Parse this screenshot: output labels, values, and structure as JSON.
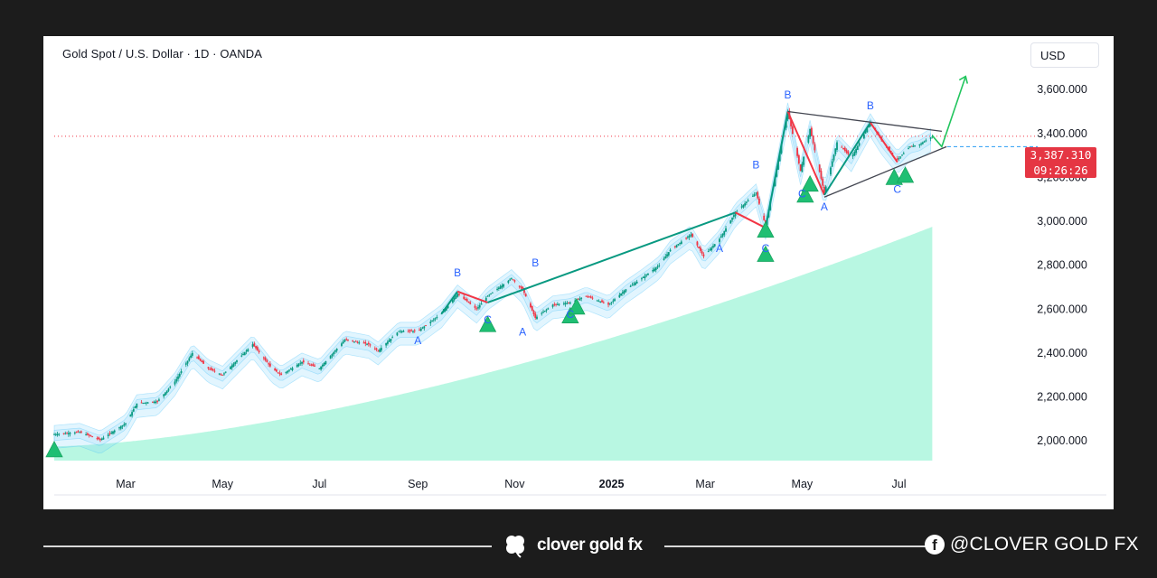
{
  "symbol_title": "Gold Spot / U.S. Dollar · 1D · OANDA",
  "currency": "USD",
  "price_tag": {
    "value": "3,387.310",
    "countdown": "09:26:26"
  },
  "colors": {
    "up": "#089981",
    "down": "#f23645",
    "projection": "#22c55e",
    "cloud": "#00e396",
    "band": "#7dd3fc",
    "tag": "#e53643"
  },
  "footer": {
    "brand": "clover gold fx",
    "social": "@CLOVER GOLD FX",
    "brand_icon": "clover-icon",
    "social_icon": "facebook-icon"
  },
  "chart_data": {
    "type": "line",
    "title": "Gold Spot / U.S. Dollar · 1D · OANDA",
    "series": [
      {
        "x": [
          "2024-01-16",
          "2024-02-01",
          "2024-02-14",
          "2024-03-01",
          "2024-03-08",
          "2024-03-21",
          "2024-04-01",
          "2024-04-12",
          "2024-04-22",
          "2024-05-01",
          "2024-05-20",
          "2024-06-01",
          "2024-06-07",
          "2024-06-20",
          "2024-07-01",
          "2024-07-17",
          "2024-08-01",
          "2024-08-07",
          "2024-08-20",
          "2024-09-01",
          "2024-09-16",
          "2024-09-26",
          "2024-10-08",
          "2024-10-15",
          "2024-10-30",
          "2024-11-06",
          "2024-11-14",
          "2024-11-25",
          "2024-12-06",
          "2024-12-16",
          "2024-12-30",
          "2025-01-10",
          "2025-01-20",
          "2025-01-31",
          "2025-02-07",
          "2025-02-20",
          "2025-02-28",
          "2025-03-10",
          "2025-03-20",
          "2025-04-02",
          "2025-04-08",
          "2025-04-22",
          "2025-04-30",
          "2025-05-06",
          "2025-05-15",
          "2025-05-23",
          "2025-06-01",
          "2025-06-13",
          "2025-06-20",
          "2025-06-30",
          "2025-07-08",
          "2025-07-14",
          "2025-07-22"
        ],
        "values": [
          2030,
          2040,
          2005,
          2080,
          2170,
          2180,
          2270,
          2400,
          2330,
          2300,
          2440,
          2330,
          2300,
          2360,
          2330,
          2460,
          2440,
          2410,
          2500,
          2500,
          2580,
          2670,
          2600,
          2660,
          2740,
          2690,
          2560,
          2620,
          2630,
          2660,
          2620,
          2690,
          2740,
          2800,
          2870,
          2940,
          2840,
          2920,
          3040,
          3130,
          2980,
          3500,
          3230,
          3420,
          3130,
          3360,
          3290,
          3450,
          3370,
          3280,
          3340,
          3350,
          3387.31
        ]
      }
    ],
    "y_axis": {
      "ticks": [
        2000,
        2200,
        2400,
        2600,
        2800,
        3000,
        3200,
        3400,
        3600
      ],
      "tick_labels": [
        "2,000.000",
        "2,200.000",
        "2,400.000",
        "2,600.000",
        "2,800.000",
        "3,000.000",
        "3,200.000",
        "3,400.000",
        "3,600.000"
      ],
      "range": [
        1910,
        3720
      ]
    },
    "x_axis": {
      "tick_labels": [
        "Mar",
        "May",
        "Jul",
        "Sep",
        "Nov",
        "2025",
        "Mar",
        "May",
        "Jul"
      ],
      "tick_dates": [
        "2024-03-01",
        "2024-05-01",
        "2024-07-01",
        "2024-09-01",
        "2024-11-01",
        "2025-01-01",
        "2025-03-01",
        "2025-05-01",
        "2025-07-01"
      ],
      "range": [
        "2024-01-16",
        "2025-09-15"
      ]
    },
    "wave_labels": [
      {
        "text": "B",
        "x": "2024-09-26",
        "y": 2750,
        "color": "#2962ff"
      },
      {
        "text": "A",
        "x": "2024-09-01",
        "y": 2440,
        "color": "#2962ff"
      },
      {
        "text": "C",
        "x": "2024-10-15",
        "y": 2535,
        "color": "#2962ff"
      },
      {
        "text": "B",
        "x": "2024-11-14",
        "y": 2795,
        "color": "#2962ff"
      },
      {
        "text": "A",
        "x": "2024-11-06",
        "y": 2480,
        "color": "#2962ff"
      },
      {
        "text": "C",
        "x": "2024-12-06",
        "y": 2560,
        "color": "#2962ff"
      },
      {
        "text": "A",
        "x": "2025-03-10",
        "y": 2860,
        "color": "#2962ff"
      },
      {
        "text": "B",
        "x": "2025-04-02",
        "y": 3240,
        "color": "#2962ff"
      },
      {
        "text": "C",
        "x": "2025-04-08",
        "y": 2860,
        "color": "#2962ff"
      },
      {
        "text": "B",
        "x": "2025-04-22",
        "y": 3560,
        "color": "#2962ff"
      },
      {
        "text": "C",
        "x": "2025-05-01",
        "y": 3110,
        "color": "#2962ff"
      },
      {
        "text": "A",
        "x": "2025-05-15",
        "y": 3050,
        "color": "#2962ff"
      },
      {
        "text": "B",
        "x": "2025-06-13",
        "y": 3510,
        "color": "#2962ff"
      },
      {
        "text": "C",
        "x": "2025-06-30",
        "y": 3130,
        "color": "#2962ff"
      }
    ],
    "signals": [
      {
        "x": "2024-01-16",
        "y": 1960
      },
      {
        "x": "2024-10-15",
        "y": 2530
      },
      {
        "x": "2024-12-06",
        "y": 2570
      },
      {
        "x": "2024-12-10",
        "y": 2610
      },
      {
        "x": "2025-04-08",
        "y": 2960
      },
      {
        "x": "2025-04-08",
        "y": 2850
      },
      {
        "x": "2025-05-03",
        "y": 3120
      },
      {
        "x": "2025-05-06",
        "y": 3170
      },
      {
        "x": "2025-06-28",
        "y": 3200
      },
      {
        "x": "2025-07-05",
        "y": 3210
      }
    ],
    "annotations": {
      "triangle_upper": [
        {
          "x": "2025-04-22",
          "y": 3500
        },
        {
          "x": "2025-07-28",
          "y": 3410
        }
      ],
      "triangle_lower": [
        {
          "x": "2025-05-15",
          "y": 3110
        },
        {
          "x": "2025-07-31",
          "y": 3340
        }
      ],
      "projection": [
        {
          "x": "2025-07-22",
          "y": 3390
        },
        {
          "x": "2025-07-28",
          "y": 3340
        },
        {
          "x": "2025-08-12",
          "y": 3660
        }
      ],
      "last_price": 3387.31,
      "reference_line": 3340
    },
    "grid": false,
    "legend": "none"
  }
}
